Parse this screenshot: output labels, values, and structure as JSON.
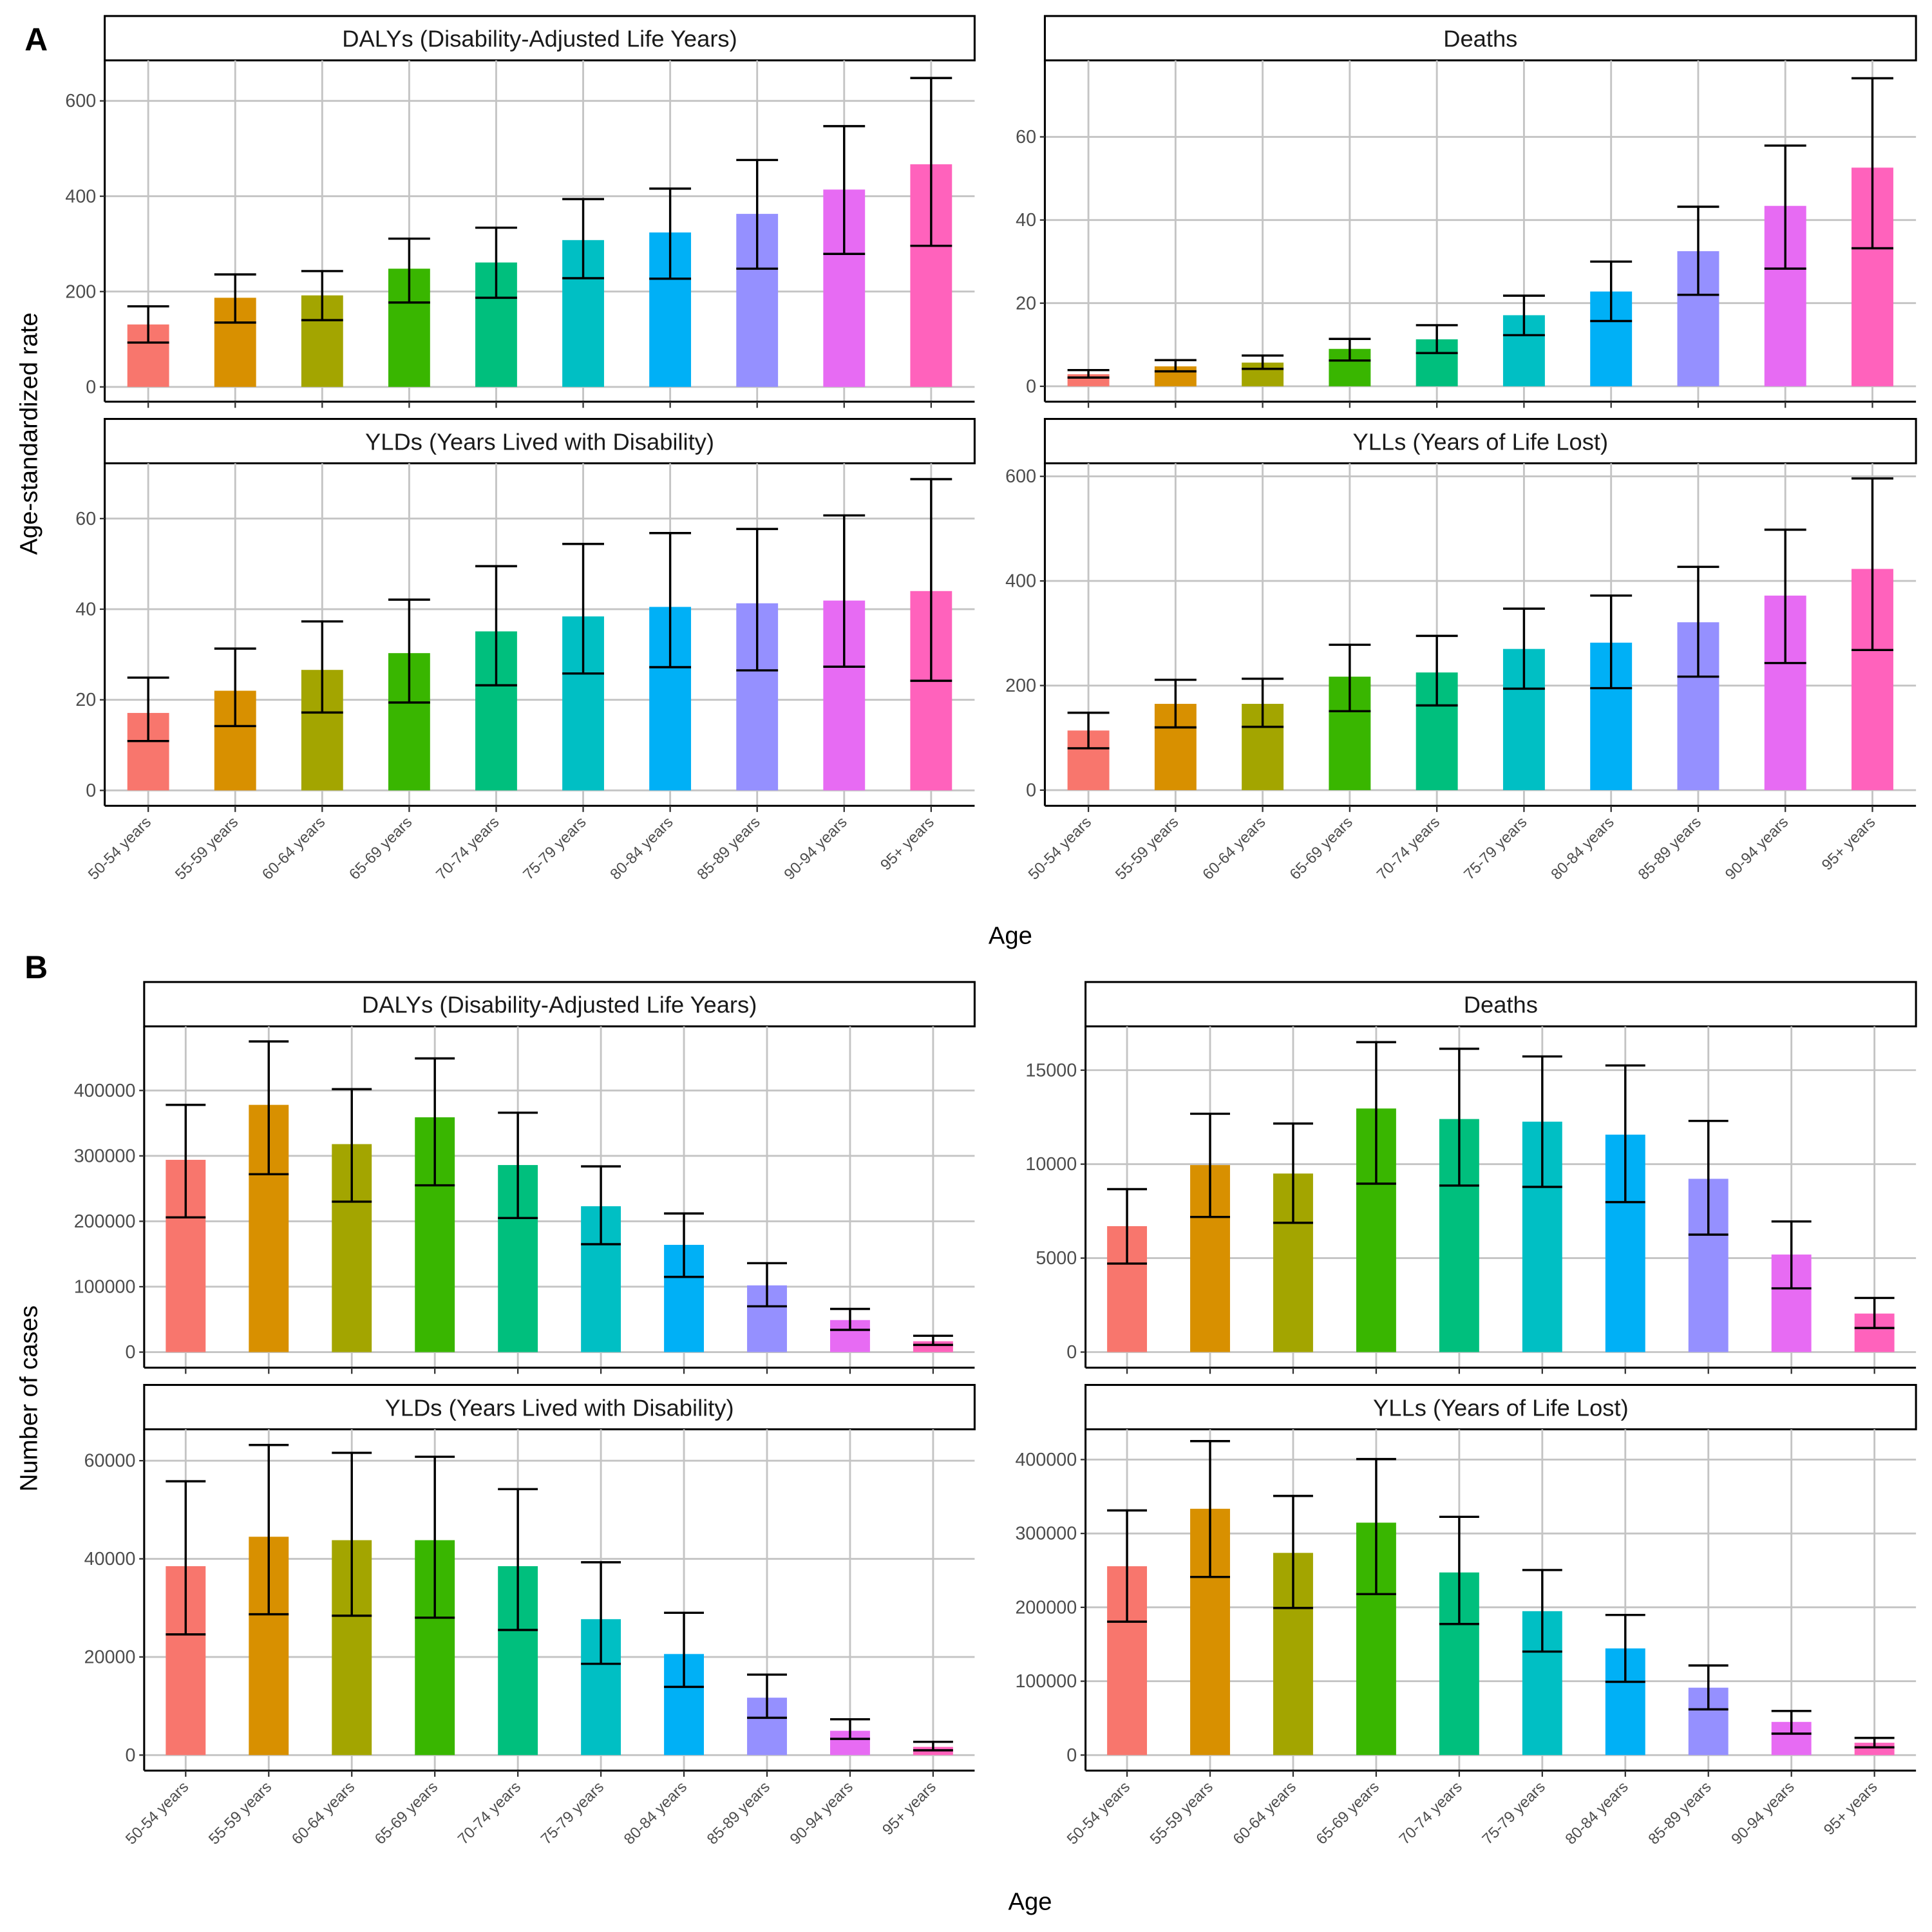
{
  "figure": {
    "panel_tags": [
      "A",
      "B"
    ],
    "x_axis_title": "Age",
    "y_axis_title_A": "Age-standardized rate",
    "y_axis_title_B": "Number of cases"
  },
  "colors": [
    "#F8766D",
    "#D89000",
    "#A3A500",
    "#39B600",
    "#00BF7D",
    "#00BFC4",
    "#00B0F6",
    "#9590FF",
    "#E76BF3",
    "#FF62BC"
  ],
  "chart_data": [
    {
      "id": "A-dalys",
      "group": "A",
      "type": "bar",
      "title": "DALYs (Disability-Adjusted Life Years)",
      "xlabel": "Age",
      "ylabel": "Age-standardized rate",
      "categories": [
        "50-54 years",
        "55-59 years",
        "60-64 years",
        "65-69 years",
        "70-74 years",
        "75-79 years",
        "80-84 years",
        "85-89 years",
        "90-94 years",
        "95+ years"
      ],
      "values": [
        131,
        187,
        192,
        248,
        261,
        308,
        324,
        363,
        414,
        467
      ],
      "lower": [
        93,
        135,
        140,
        177,
        187,
        228,
        227,
        248,
        279,
        296
      ],
      "upper": [
        169,
        236,
        243,
        311,
        334,
        394,
        416,
        476,
        547,
        648
      ],
      "yticks": [
        0,
        200,
        400,
        600
      ],
      "ylim": [
        -31,
        685
      ],
      "grid": true
    },
    {
      "id": "A-deaths",
      "group": "A",
      "type": "bar",
      "title": "Deaths",
      "xlabel": "Age",
      "ylabel": "Age-standardized rate",
      "categories": [
        "50-54 years",
        "55-59 years",
        "60-64 years",
        "65-69 years",
        "70-74 years",
        "75-79 years",
        "80-84 years",
        "85-89 years",
        "90-94 years",
        "95+ years"
      ],
      "values": [
        2.9,
        4.8,
        5.7,
        9.0,
        11.3,
        17.1,
        22.8,
        32.5,
        43.4,
        52.6
      ],
      "lower": [
        2.1,
        3.6,
        4.2,
        6.2,
        8.0,
        12.3,
        15.7,
        22.0,
        28.3,
        33.2
      ],
      "upper": [
        3.9,
        6.3,
        7.4,
        11.4,
        14.7,
        21.8,
        30.0,
        43.2,
        57.9,
        74.1
      ],
      "yticks": [
        0,
        20,
        40,
        60
      ],
      "ylim": [
        -3.7,
        78.4
      ],
      "grid": true
    },
    {
      "id": "A-ylds",
      "group": "A",
      "type": "bar",
      "title": "YLDs (Years Lived with Disability)",
      "xlabel": "Age",
      "ylabel": "Age-standardized rate",
      "categories": [
        "50-54 years",
        "55-59 years",
        "60-64 years",
        "65-69 years",
        "70-74 years",
        "75-79 years",
        "80-84 years",
        "85-89 years",
        "90-94 years",
        "95+ years"
      ],
      "values": [
        17.1,
        22.0,
        26.6,
        30.3,
        35.1,
        38.4,
        40.5,
        41.3,
        41.9,
        44.0
      ],
      "lower": [
        10.9,
        14.2,
        17.2,
        19.4,
        23.2,
        25.8,
        27.2,
        26.5,
        27.3,
        24.2
      ],
      "upper": [
        24.9,
        31.3,
        37.3,
        42.1,
        49.5,
        54.4,
        56.8,
        57.7,
        60.7,
        68.7
      ],
      "yticks": [
        0,
        20,
        40,
        60
      ],
      "ylim": [
        -3.4,
        72.2
      ],
      "grid": true
    },
    {
      "id": "A-ylls",
      "group": "A",
      "type": "bar",
      "title": "YLLs (Years of Life Lost)",
      "xlabel": "Age",
      "ylabel": "Age-standardized rate",
      "categories": [
        "50-54 years",
        "55-59 years",
        "60-64 years",
        "65-69 years",
        "70-74 years",
        "75-79 years",
        "80-84 years",
        "85-89 years",
        "90-94 years",
        "95+ years"
      ],
      "values": [
        114,
        165,
        165,
        217,
        225,
        270,
        282,
        321,
        372,
        423
      ],
      "lower": [
        80,
        120,
        121,
        151,
        162,
        194,
        195,
        217,
        243,
        268
      ],
      "upper": [
        148,
        211,
        213,
        278,
        295,
        347,
        372,
        427,
        498,
        596
      ],
      "yticks": [
        0,
        200,
        400,
        600
      ],
      "ylim": [
        -30,
        625
      ],
      "grid": true
    },
    {
      "id": "B-dalys",
      "group": "B",
      "type": "bar",
      "title": "DALYs (Disability-Adjusted Life Years)",
      "xlabel": "Age",
      "ylabel": "Number of cases",
      "categories": [
        "50-54 years",
        "55-59 years",
        "60-64 years",
        "65-69 years",
        "70-74 years",
        "75-79 years",
        "80-84 years",
        "85-89 years",
        "90-94 years",
        "95+ years"
      ],
      "values": [
        294000,
        378000,
        318000,
        359000,
        286000,
        223000,
        164000,
        102000,
        49000,
        16600
      ],
      "lower": [
        206000,
        272000,
        230000,
        255000,
        205000,
        165000,
        115000,
        70000,
        34000,
        11000
      ],
      "upper": [
        378000,
        475000,
        402000,
        449000,
        366000,
        284000,
        212000,
        136000,
        66000,
        25000
      ],
      "yticks": [
        0,
        100000,
        200000,
        300000,
        400000
      ],
      "ylim": [
        -23800,
        498000
      ],
      "grid": true
    },
    {
      "id": "B-deaths",
      "group": "B",
      "type": "bar",
      "title": "Deaths",
      "xlabel": "Age",
      "ylabel": "Number of cases",
      "categories": [
        "50-54 years",
        "55-59 years",
        "60-64 years",
        "65-69 years",
        "70-74 years",
        "75-79 years",
        "80-84 years",
        "85-89 years",
        "90-94 years",
        "95+ years"
      ],
      "values": [
        6700,
        9950,
        9500,
        12960,
        12400,
        12260,
        11570,
        9220,
        5190,
        2050
      ],
      "lower": [
        4710,
        7190,
        6880,
        8960,
        8860,
        8790,
        7980,
        6250,
        3390,
        1280
      ],
      "upper": [
        8670,
        12680,
        12160,
        16490,
        16140,
        15730,
        15250,
        12300,
        6950,
        2880
      ],
      "yticks": [
        0,
        5000,
        10000,
        15000
      ],
      "ylim": [
        -830,
        17330
      ],
      "grid": true
    },
    {
      "id": "B-ylds",
      "group": "B",
      "type": "bar",
      "title": "YLDs (Years Lived with Disability)",
      "xlabel": "Age",
      "ylabel": "Number of cases",
      "categories": [
        "50-54 years",
        "55-59 years",
        "60-64 years",
        "65-69 years",
        "70-74 years",
        "75-79 years",
        "80-84 years",
        "85-89 years",
        "90-94 years",
        "95+ years"
      ],
      "values": [
        38500,
        44500,
        43800,
        43800,
        38500,
        27700,
        20600,
        11700,
        4950,
        1670
      ],
      "lower": [
        24600,
        28700,
        28400,
        28000,
        25500,
        18600,
        13900,
        7600,
        3300,
        970
      ],
      "upper": [
        55800,
        63200,
        61600,
        60800,
        54200,
        39300,
        29000,
        16400,
        7300,
        2700
      ],
      "yticks": [
        0,
        20000,
        40000,
        60000
      ],
      "ylim": [
        -3160,
        66400
      ],
      "grid": true
    },
    {
      "id": "B-ylls",
      "group": "B",
      "type": "bar",
      "title": "YLLs (Years of Life Lost)",
      "xlabel": "Age",
      "ylabel": "Number of cases",
      "categories": [
        "50-54 years",
        "55-59 years",
        "60-64 years",
        "65-69 years",
        "70-74 years",
        "75-79 years",
        "80-84 years",
        "85-89 years",
        "90-94 years",
        "95+ years"
      ],
      "values": [
        255600,
        333400,
        273700,
        314600,
        247200,
        194800,
        144400,
        91200,
        44900,
        16700
      ],
      "lower": [
        180600,
        241100,
        199100,
        217900,
        177400,
        140100,
        99200,
        61900,
        29000,
        10500
      ],
      "upper": [
        331200,
        425000,
        350800,
        400700,
        322500,
        250500,
        189700,
        121300,
        59700,
        23200
      ],
      "yticks": [
        0,
        100000,
        200000,
        300000,
        400000
      ],
      "ylim": [
        -21000,
        441000
      ],
      "grid": true
    }
  ]
}
